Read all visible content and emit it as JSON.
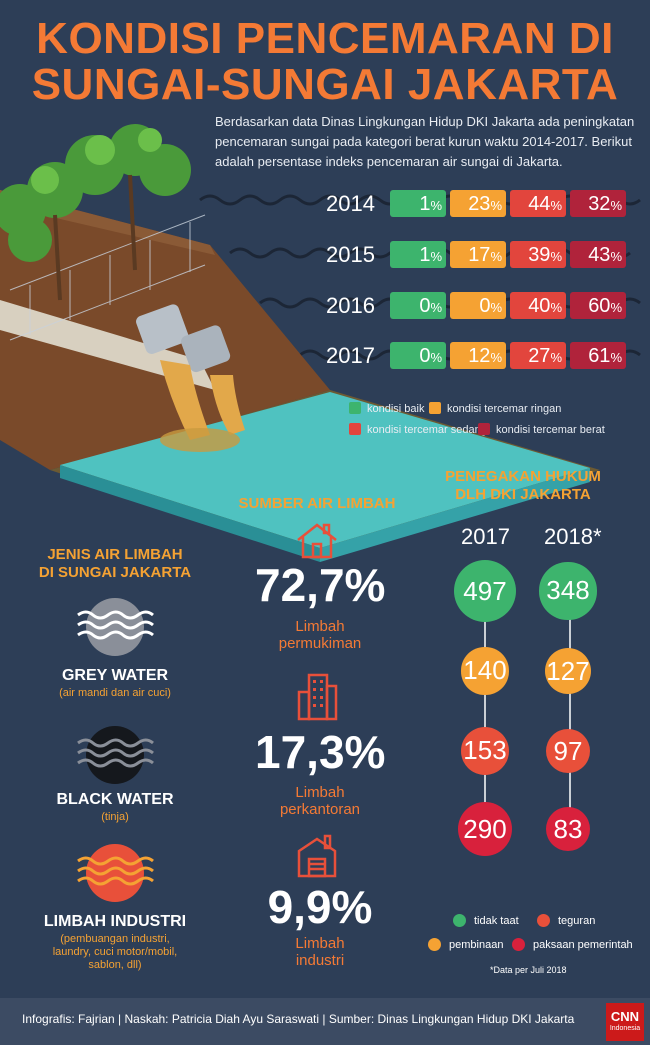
{
  "title": {
    "line1": "KONDISI PENCEMARAN DI",
    "line2": "SUNGAI-SUNGAI JAKARTA"
  },
  "intro": "Berdasarkan data Dinas Lingkungan Hidup DKI Jakarta ada peningkatan pencemaran sungai pada kategori berat kurun waktu 2014-2017. Berikut adalah persentase indeks pencemaran air sungai di Jakarta.",
  "years": [
    {
      "year": "2014",
      "baik": "1",
      "ringan": "23",
      "sedang": "44",
      "berat": "32"
    },
    {
      "year": "2015",
      "baik": "1",
      "ringan": "17",
      "sedang": "39",
      "berat": "43"
    },
    {
      "year": "2016",
      "baik": "0",
      "ringan": "0",
      "sedang": "40",
      "berat": "60"
    },
    {
      "year": "2017",
      "baik": "0",
      "ringan": "12",
      "sedang": "27",
      "berat": "61"
    }
  ],
  "pct_sign": "%",
  "legend": {
    "baik": "kondisi baik",
    "ringan": "kondisi tercemar ringan",
    "sedang": "kondisi tercemar sedang",
    "berat": "kondisi tercemar berat"
  },
  "colors": {
    "baik": "#3db46d",
    "ringan": "#f5a233",
    "sedang": "#e2453d",
    "berat": "#b0233b",
    "title": "#f47a35"
  },
  "jenis": {
    "heading1": "JENIS AIR LIMBAH",
    "heading2": "DI SUNGAI JAKARTA",
    "items": [
      {
        "label": "GREY WATER",
        "sub": "(air mandi dan air cuci)"
      },
      {
        "label": "BLACK WATER",
        "sub": "(tinja)"
      },
      {
        "label": "LIMBAH INDUSTRI",
        "sub1": "(pembuangan industri,",
        "sub2": "laundry, cuci motor/mobil,",
        "sub3": "sablon, dll)"
      }
    ]
  },
  "sumber": {
    "heading": "SUMBER AIR LIMBAH",
    "items": [
      {
        "value": "72,7%",
        "l1": "Limbah",
        "l2": "permukiman"
      },
      {
        "value": "17,3%",
        "l1": "Limbah",
        "l2": "perkantoran"
      },
      {
        "value": "9,9%",
        "l1": "Limbah",
        "l2": "industri"
      }
    ]
  },
  "hukum": {
    "heading1": "PENEGAKAN HUKUM",
    "heading2": "DLH DKI JAKARTA",
    "year1": "2017",
    "year2": "2018*",
    "rows": [
      {
        "v2017": "497",
        "v2018": "348"
      },
      {
        "v2017": "140",
        "v2018": "127"
      },
      {
        "v2017": "153",
        "v2018": "97"
      },
      {
        "v2017": "290",
        "v2018": "83"
      }
    ],
    "legend": {
      "tidak_taat": "tidak taat",
      "teguran": "teguran",
      "pembinaan": "pembinaan",
      "paksaan": "paksaan pemerintah"
    },
    "note": "*Data per Juli 2018"
  },
  "footer": "Infografis: Fajrian | Naskah: Patricia Diah Ayu Saraswati | Sumber: Dinas Lingkungan Hidup DKI Jakarta",
  "brand": {
    "name": "CNN",
    "sub": "Indonesia"
  }
}
